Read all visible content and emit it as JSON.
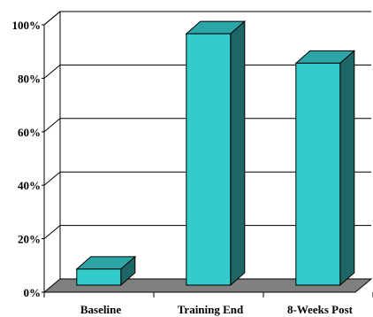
{
  "chart_data": {
    "type": "bar",
    "categories": [
      "Baseline",
      "Training End",
      "8-Weeks Post"
    ],
    "values": [
      6,
      94,
      83
    ],
    "ylim": [
      0,
      100
    ],
    "yticks": [
      "0%",
      "20%",
      "40%",
      "60%",
      "80%",
      "100%"
    ],
    "grid": true,
    "legend": "none",
    "three_d": true,
    "colors": {
      "bar_front": "#33CCCC",
      "bar_top": "#2BA5A5",
      "bar_side": "#1E6666",
      "floor": "#808080",
      "grid": "#000000"
    }
  }
}
